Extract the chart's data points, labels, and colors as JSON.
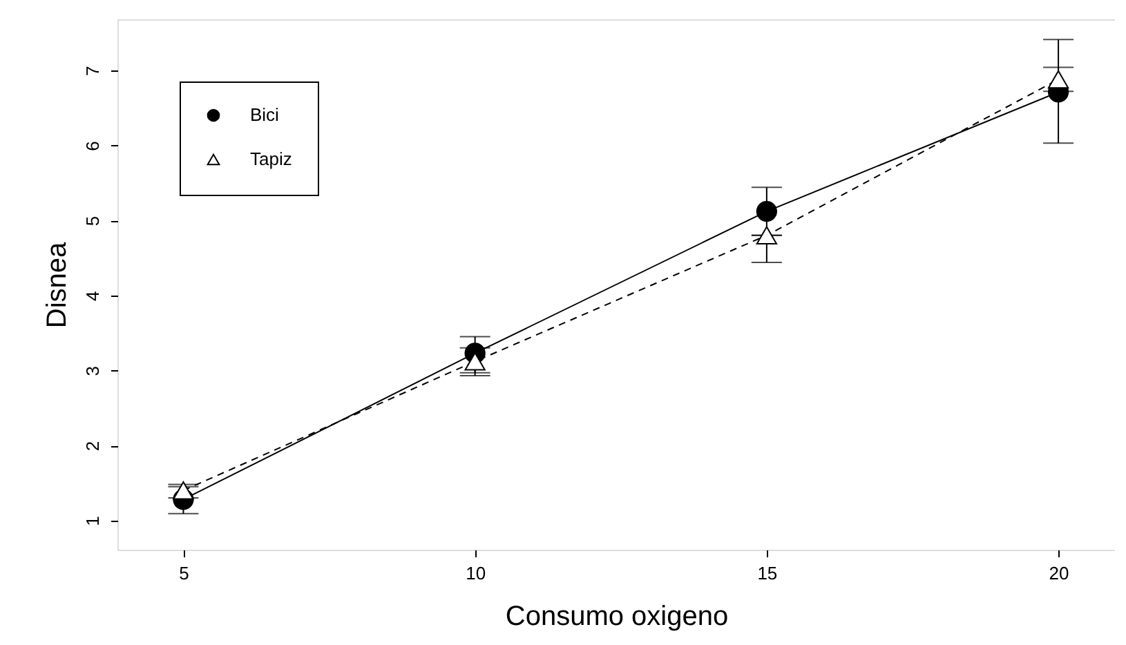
{
  "chart_data": {
    "type": "line",
    "xlabel": "Consumo oxigeno",
    "ylabel": "Disnea",
    "x": [
      5,
      10,
      15,
      20
    ],
    "xlim": [
      3.87,
      20.97
    ],
    "ylim": [
      0.61,
      7.68
    ],
    "xticks": [
      5,
      10,
      15,
      20
    ],
    "yticks": [
      1,
      2,
      3,
      4,
      5,
      6,
      7
    ],
    "grid": false,
    "legend": "top left",
    "series": [
      {
        "name": "Bici",
        "color": "#000000",
        "values": [
          1.28,
          3.23,
          5.12,
          6.71
        ],
        "errors": [
          [
            1.09,
            1.45
          ],
          [
            2.97,
            3.45
          ],
          [
            4.8,
            5.44
          ],
          [
            6.03,
            7.41
          ]
        ],
        "marker": "circle",
        "line_style": "solid"
      },
      {
        "name": "Tapiz",
        "color": "#000000",
        "values": [
          1.4,
          3.12,
          4.8,
          6.88
        ],
        "errors": [
          [
            1.3,
            1.48
          ],
          [
            2.93,
            3.3
          ],
          [
            4.44,
            4.8
          ],
          [
            6.72,
            7.04
          ]
        ],
        "marker": "triangle",
        "line_style": "dashed"
      }
    ]
  }
}
